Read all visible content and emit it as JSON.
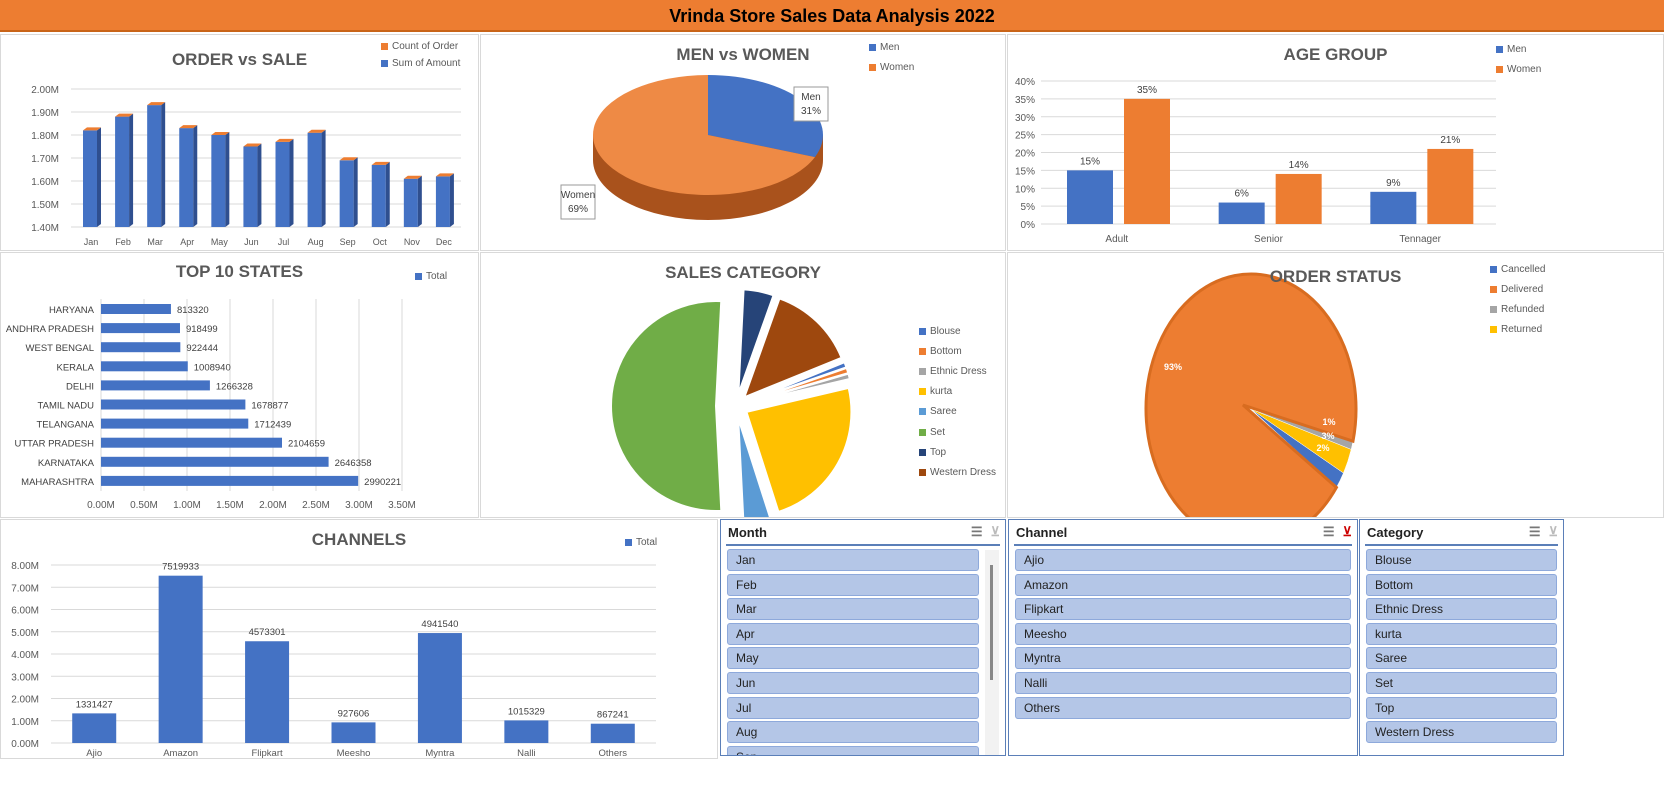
{
  "title": "Vrinda Store Sales Data Analysis 2022",
  "colors": {
    "blue": "#4472C4",
    "orange": "#ED7D31",
    "gray": "#A5A5A5",
    "yellow": "#FFC000",
    "lightblue": "#5B9BD5",
    "green": "#70AD47",
    "navy": "#264478",
    "brown": "#9E480E"
  },
  "chart_data": [
    {
      "id": "order_vs_sale",
      "type": "bar",
      "title": "ORDER vs SALE",
      "legend": [
        "Count of Order",
        "Sum of Amount"
      ],
      "categories": [
        "Jan",
        "Feb",
        "Mar",
        "Apr",
        "May",
        "Jun",
        "Jul",
        "Aug",
        "Sep",
        "Oct",
        "Nov",
        "Dec"
      ],
      "values": [
        1.82,
        1.88,
        1.93,
        1.83,
        1.8,
        1.75,
        1.77,
        1.81,
        1.69,
        1.67,
        1.61,
        1.62
      ],
      "yticks": [
        "1.40M",
        "1.50M",
        "1.60M",
        "1.70M",
        "1.80M",
        "1.90M",
        "2.00M"
      ],
      "ylim": [
        1.4,
        2.0
      ]
    },
    {
      "id": "men_vs_women",
      "type": "pie",
      "title": "MEN vs WOMEN",
      "labels": [
        "Men",
        "Women"
      ],
      "values": [
        31,
        69
      ],
      "data_labels": [
        "31%",
        "69%"
      ]
    },
    {
      "id": "age_group",
      "type": "bar",
      "title": "AGE GROUP",
      "categories": [
        "Adult",
        "Senior",
        "Tennager"
      ],
      "series": [
        {
          "name": "Men",
          "values": [
            15,
            6,
            9
          ],
          "labels": [
            "15%",
            "6%",
            "9%"
          ]
        },
        {
          "name": "Women",
          "values": [
            35,
            14,
            21
          ],
          "labels": [
            "35%",
            "14%",
            "21%"
          ]
        }
      ],
      "yticks": [
        "0%",
        "5%",
        "10%",
        "15%",
        "20%",
        "25%",
        "30%",
        "35%",
        "40%"
      ],
      "ylim": [
        0,
        40
      ]
    },
    {
      "id": "top_states",
      "type": "bar",
      "orientation": "horizontal",
      "title": "TOP 10 STATES",
      "legend": [
        "Total"
      ],
      "categories": [
        "HARYANA",
        "ANDHRA PRADESH",
        "WEST BENGAL",
        "KERALA",
        "DELHI",
        "TAMIL NADU",
        "TELANGANA",
        "UTTAR PRADESH",
        "KARNATAKA",
        "MAHARASHTRA"
      ],
      "values": [
        813320,
        918499,
        922444,
        1008940,
        1266328,
        1678877,
        1712439,
        2104659,
        2646358,
        2990221
      ],
      "xticks": [
        "0.00M",
        "0.50M",
        "1.00M",
        "1.50M",
        "2.00M",
        "2.50M",
        "3.00M",
        "3.50M"
      ],
      "xlim": [
        0,
        3500000
      ]
    },
    {
      "id": "sales_category",
      "type": "pie",
      "title": "SALES CATEGORY",
      "labels": [
        "Blouse",
        "Bottom",
        "Ethnic Dress",
        "kurta",
        "Saree",
        "Set",
        "Top",
        "Western Dress"
      ],
      "values": [
        0.8,
        0.8,
        0.8,
        23,
        4,
        50,
        4.5,
        13
      ]
    },
    {
      "id": "order_status",
      "type": "pie",
      "title": "ORDER STATUS",
      "labels": [
        "Cancelled",
        "Delivered",
        "Refunded",
        "Returned"
      ],
      "values": [
        2,
        93,
        1,
        3
      ],
      "data_labels": [
        "2%",
        "93%",
        "1%",
        "3%"
      ]
    },
    {
      "id": "channels",
      "type": "bar",
      "title": "CHANNELS",
      "legend": [
        "Total"
      ],
      "categories": [
        "Ajio",
        "Amazon",
        "Flipkart",
        "Meesho",
        "Myntra",
        "Nalli",
        "Others"
      ],
      "values": [
        1331427,
        7519933,
        4573301,
        927606,
        4941540,
        1015329,
        867241
      ],
      "yticks": [
        "0.00M",
        "1.00M",
        "2.00M",
        "3.00M",
        "4.00M",
        "5.00M",
        "6.00M",
        "7.00M",
        "8.00M"
      ],
      "ylim": [
        0,
        8000000
      ]
    }
  ],
  "slicers": [
    {
      "title": "Month",
      "items": [
        "Jan",
        "Feb",
        "Mar",
        "Apr",
        "May",
        "Jun",
        "Jul",
        "Aug",
        "Sep"
      ]
    },
    {
      "title": "Channel",
      "items": [
        "Ajio",
        "Amazon",
        "Flipkart",
        "Meesho",
        "Myntra",
        "Nalli",
        "Others"
      ]
    },
    {
      "title": "Category",
      "items": [
        "Blouse",
        "Bottom",
        "Ethnic Dress",
        "kurta",
        "Saree",
        "Set",
        "Top",
        "Western Dress"
      ]
    }
  ]
}
